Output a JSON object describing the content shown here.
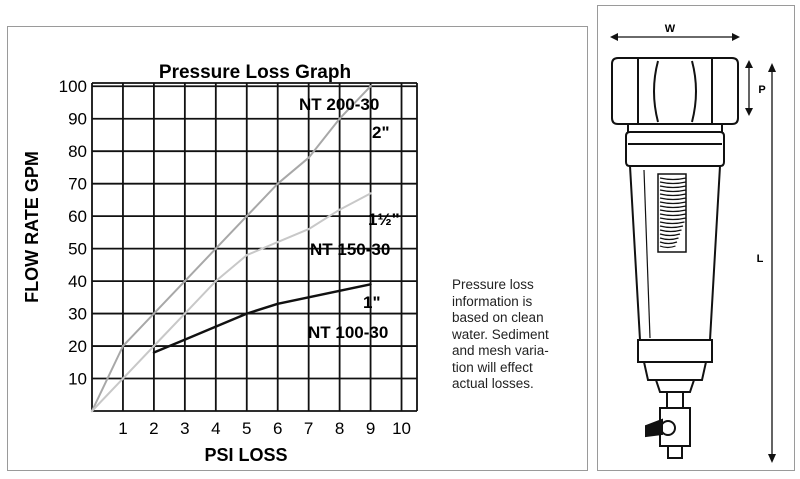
{
  "chart_data": {
    "type": "line",
    "title": "Pressure Loss Graph",
    "xlabel": "PSI LOSS",
    "ylabel": "FLOW RATE GPM",
    "x_ticks": [
      "1",
      "2",
      "3",
      "4",
      "5",
      "6",
      "7",
      "8",
      "9",
      "10"
    ],
    "y_ticks": [
      "10",
      "20",
      "30",
      "40",
      "50",
      "60",
      "70",
      "80",
      "90",
      "100"
    ],
    "xlim": [
      0,
      10.5
    ],
    "ylim": [
      0,
      101
    ],
    "grid": true,
    "series": [
      {
        "name": "NT 200-30",
        "size_label": "2\"",
        "color": "#a8a8a8",
        "x": [
          0,
          1,
          2,
          3,
          4,
          5,
          6,
          7,
          8,
          9
        ],
        "y": [
          0,
          20,
          30,
          40,
          50,
          60,
          70,
          78,
          90,
          100
        ]
      },
      {
        "name": "NT 150-30",
        "size_label": "1½\"",
        "color": "#c8c8c8",
        "x": [
          0,
          1,
          2,
          3,
          4,
          5,
          6,
          7,
          8,
          9
        ],
        "y": [
          0,
          10,
          20,
          30,
          40,
          48,
          52,
          56,
          62,
          67
        ]
      },
      {
        "name": "NT 100-30",
        "size_label": "1\"",
        "color": "#111111",
        "x": [
          2,
          3,
          4,
          5,
          6,
          7,
          8,
          9
        ],
        "y": [
          18,
          22,
          26,
          30,
          33,
          35,
          37,
          39
        ]
      }
    ]
  },
  "note": {
    "text": "Pressure loss\ninformation is\nbased on clean\nwater.  Sediment\nand mesh varia-\ntion will effect\nactual losses."
  },
  "diagram": {
    "width_label": "W",
    "port_label": "P",
    "length_label": "L"
  }
}
